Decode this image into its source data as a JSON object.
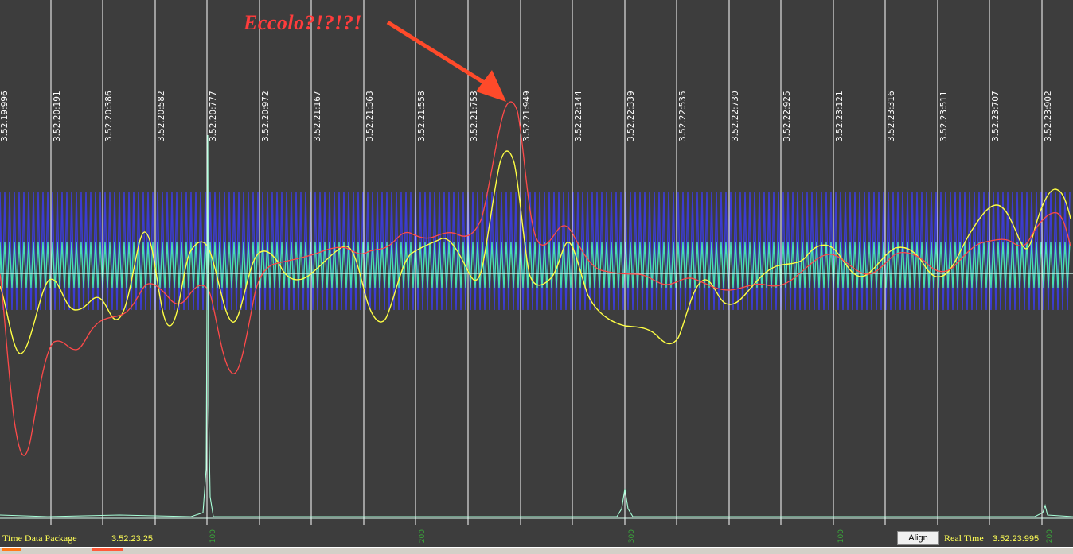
{
  "annotation": {
    "text": "Eccolo?!?!?!"
  },
  "time_markers": [
    "3.52.19:996",
    "3.52.20:191",
    "3.52.20:386",
    "3.52.20:582",
    "3.52.20:777",
    "3.52.20:972",
    "3.52.21:167",
    "3.52.21:363",
    "3.52.21:558",
    "3.52.21:753",
    "3.52.21:949",
    "3.52.22:144",
    "3.52.22:339",
    "3.52.22:535",
    "3.52.22:730",
    "3.52.22:925",
    "3.52.23:121",
    "3.52.23:316",
    "3.52.23:511",
    "3.52.23:707",
    "3.52.23:902"
  ],
  "status": {
    "package_label": "Time Data Package",
    "package_time": "3.52.23:25",
    "align_button": "Align",
    "realtime_label": "Real Time",
    "realtime_time": "3.52.23:995"
  },
  "scale_ticks": [
    "100",
    "200",
    "300",
    "100",
    "200"
  ],
  "colors": {
    "background": "#3d3d3d",
    "grid": "#ffffff",
    "blue_band": "#3c3cd2",
    "cyan_band": "#49e0b0",
    "yellow_trace": "#ffff44",
    "red_trace": "#ff4a4a",
    "baseline": "#d8fff0",
    "annotation": "#ff3c3c"
  }
}
